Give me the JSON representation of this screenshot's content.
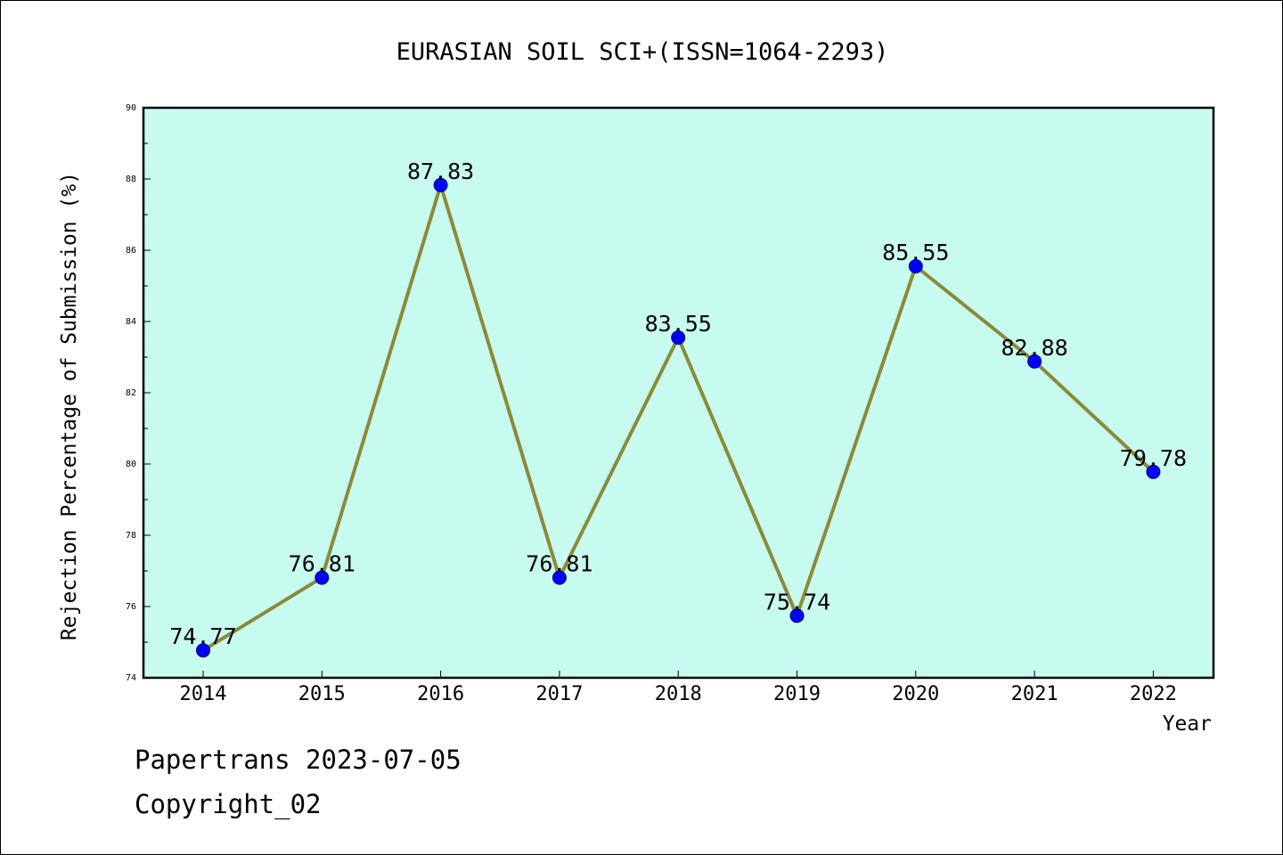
{
  "chart_data": {
    "type": "line",
    "title": "EURASIAN SOIL SCI+(ISSN=1064-2293)",
    "xlabel": "Year",
    "ylabel": "Rejection Percentage of Submission (%)",
    "categories": [
      "2014",
      "2015",
      "2016",
      "2017",
      "2018",
      "2019",
      "2020",
      "2021",
      "2022"
    ],
    "values": [
      74.77,
      76.81,
      87.83,
      76.81,
      83.55,
      75.74,
      85.55,
      82.88,
      79.78
    ],
    "data_labels": [
      "74.77",
      "76.81",
      "87.83",
      "76.81",
      "83.55",
      "75.74",
      "85.55",
      "82.88",
      "79.78"
    ],
    "ylim": [
      74,
      90
    ],
    "yticks": [
      "74",
      "76",
      "78",
      "80",
      "82",
      "84",
      "86",
      "88",
      "90"
    ],
    "grid": false,
    "colors": {
      "plot_background": "#c8fbef",
      "line": "#8b8a3a",
      "marker": "#0000ff"
    }
  },
  "footer": {
    "line1": "Papertrans 2023-07-05",
    "line2": "Copyright_02"
  }
}
